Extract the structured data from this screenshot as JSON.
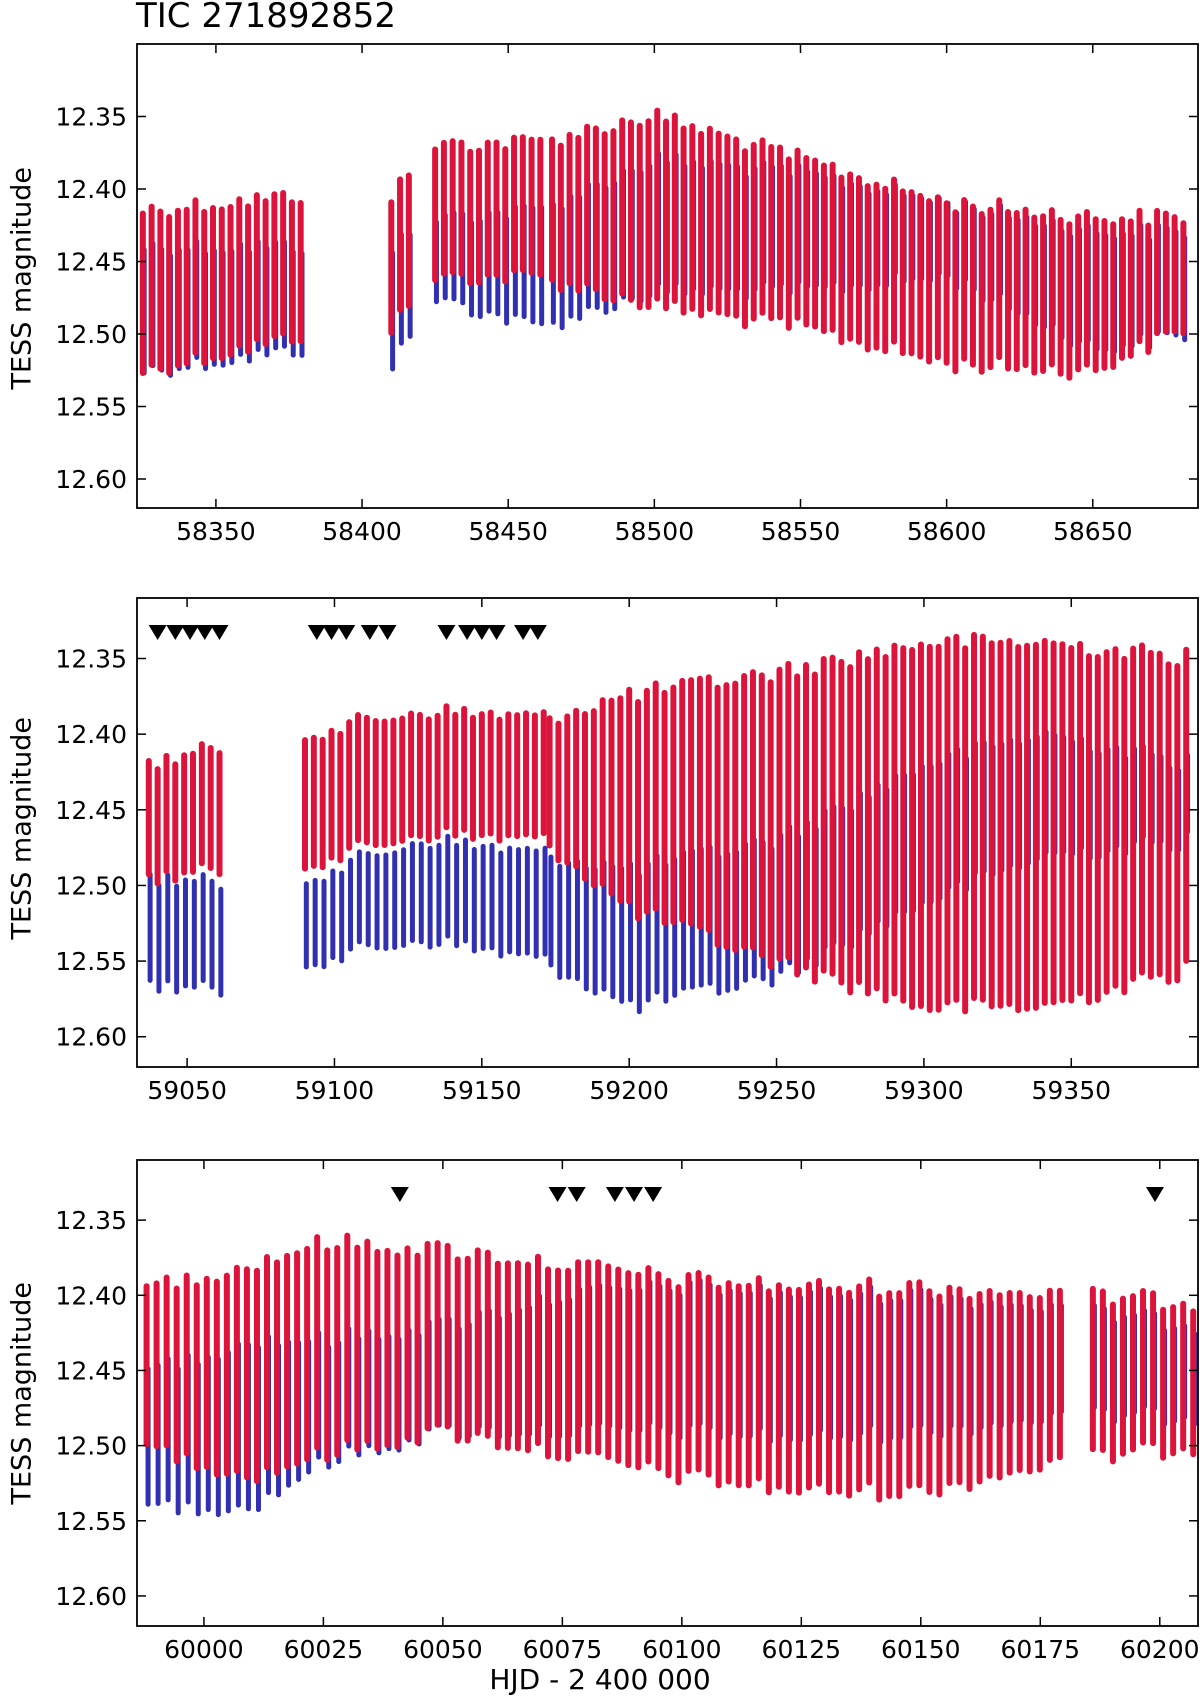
{
  "figure": {
    "title": "TIC 271892852",
    "xlabel": "HJD - 2 400 000",
    "ylabel": "TESS magnitude"
  },
  "colors": {
    "red": "#dc143c",
    "blue": "#3030b0",
    "frame": "#000000",
    "marker": "#000000"
  },
  "chart_data": [
    {
      "type": "scatter",
      "ylabel": "TESS magnitude",
      "xlim": [
        58323,
        58686
      ],
      "ylim": [
        12.62,
        12.3
      ],
      "yinverted": true,
      "xticks": [
        58350,
        58400,
        58450,
        58500,
        58550,
        58600,
        58650
      ],
      "yticks": [
        12.35,
        12.4,
        12.45,
        12.5,
        12.55,
        12.6
      ],
      "segments": [
        [
          58325,
          58380
        ],
        [
          58410,
          58418
        ],
        [
          58425,
          58462
        ],
        [
          58465,
          58682
        ]
      ],
      "cycle_days": 3.0,
      "red_envelope": [
        [
          58325,
          12.415,
          12.535
        ],
        [
          58380,
          12.405,
          12.51
        ],
        [
          58410,
          12.405,
          12.505
        ],
        [
          58425,
          12.37,
          12.47
        ],
        [
          58460,
          12.368,
          12.47
        ],
        [
          58500,
          12.35,
          12.49
        ],
        [
          58550,
          12.38,
          12.505
        ],
        [
          58600,
          12.41,
          12.53
        ],
        [
          58650,
          12.42,
          12.535
        ],
        [
          58682,
          12.42,
          12.505
        ]
      ],
      "blue_envelope": [
        [
          58325,
          12.44,
          12.525
        ],
        [
          58380,
          12.44,
          12.51
        ],
        [
          58410,
          12.44,
          12.52
        ],
        [
          58425,
          12.42,
          12.475
        ],
        [
          58460,
          12.415,
          12.495
        ],
        [
          58500,
          12.38,
          12.47
        ],
        [
          58550,
          12.39,
          12.47
        ],
        [
          58600,
          12.41,
          12.46
        ],
        [
          58650,
          12.43,
          12.51
        ],
        [
          58682,
          12.43,
          12.5
        ]
      ],
      "markers": []
    },
    {
      "type": "scatter",
      "ylabel": "TESS magnitude",
      "xlim": [
        59033,
        59393
      ],
      "ylim": [
        12.62,
        12.31
      ],
      "yinverted": true,
      "xticks": [
        59050,
        59100,
        59150,
        59200,
        59250,
        59300,
        59350
      ],
      "yticks": [
        12.35,
        12.4,
        12.45,
        12.5,
        12.55,
        12.6
      ],
      "segments": [
        [
          59037,
          59061
        ],
        [
          59090,
          59171
        ],
        [
          59173,
          59390
        ]
      ],
      "cycle_days": 3.0,
      "red_envelope": [
        [
          59037,
          12.42,
          12.505
        ],
        [
          59061,
          12.41,
          12.5
        ],
        [
          59090,
          12.4,
          12.495
        ],
        [
          59130,
          12.385,
          12.475
        ],
        [
          59171,
          12.39,
          12.48
        ],
        [
          59200,
          12.375,
          12.525
        ],
        [
          59250,
          12.36,
          12.56
        ],
        [
          59300,
          12.34,
          12.59
        ],
        [
          59340,
          12.34,
          12.59
        ],
        [
          59390,
          12.35,
          12.565
        ]
      ],
      "blue_envelope": [
        [
          59037,
          12.495,
          12.565
        ],
        [
          59061,
          12.5,
          12.57
        ],
        [
          59090,
          12.495,
          12.55
        ],
        [
          59130,
          12.47,
          12.535
        ],
        [
          59171,
          12.48,
          12.55
        ],
        [
          59200,
          12.49,
          12.58
        ],
        [
          59250,
          12.47,
          12.56
        ],
        [
          59300,
          12.42,
          12.51
        ],
        [
          59340,
          12.4,
          12.48
        ],
        [
          59390,
          12.42,
          12.47
        ]
      ],
      "markers": [
        59040,
        59046,
        59051,
        59056,
        59061,
        59094,
        59099,
        59104,
        59112,
        59118,
        59138,
        59145,
        59150,
        59155,
        59164,
        59169
      ]
    },
    {
      "type": "scatter",
      "ylabel": "TESS magnitude",
      "xlim": [
        59986,
        60208
      ],
      "ylim": [
        12.62,
        12.31
      ],
      "yinverted": true,
      "xticks": [
        60000,
        60025,
        60050,
        60075,
        60100,
        60125,
        60150,
        60175,
        60200
      ],
      "yticks": [
        12.35,
        12.4,
        12.45,
        12.5,
        12.55,
        12.6
      ],
      "segments": [
        [
          59988,
          60180
        ],
        [
          60186,
          60207
        ]
      ],
      "cycle_days": 2.1,
      "red_envelope": [
        [
          59988,
          12.395,
          12.51
        ],
        [
          60010,
          12.38,
          12.53
        ],
        [
          60025,
          12.365,
          12.515
        ],
        [
          60050,
          12.37,
          12.5
        ],
        [
          60075,
          12.38,
          12.515
        ],
        [
          60100,
          12.39,
          12.53
        ],
        [
          60125,
          12.395,
          12.54
        ],
        [
          60150,
          12.395,
          12.54
        ],
        [
          60180,
          12.4,
          12.52
        ],
        [
          60207,
          12.405,
          12.51
        ]
      ],
      "blue_envelope": [
        [
          59988,
          12.45,
          12.54
        ],
        [
          60010,
          12.43,
          12.54
        ],
        [
          60025,
          12.43,
          12.51
        ],
        [
          60050,
          12.42,
          12.49
        ],
        [
          60075,
          12.4,
          12.49
        ],
        [
          60100,
          12.395,
          12.49
        ],
        [
          60125,
          12.4,
          12.495
        ],
        [
          60150,
          12.4,
          12.49
        ],
        [
          60180,
          12.41,
          12.48
        ],
        [
          60207,
          12.42,
          12.48
        ]
      ],
      "markers": [
        60041,
        60074,
        60078,
        60086,
        60090,
        60094,
        60199
      ]
    }
  ]
}
